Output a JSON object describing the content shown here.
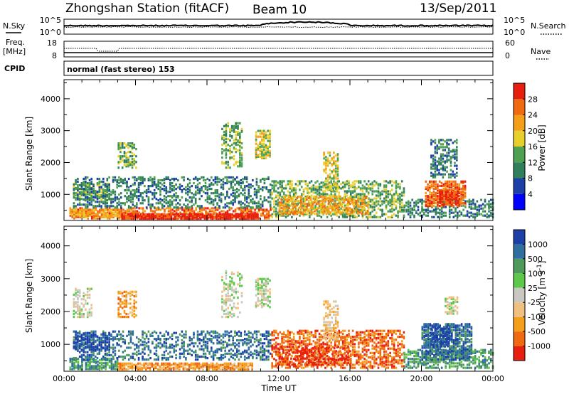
{
  "header": {
    "title_left": "Zhongshan Station (fitACF)",
    "beam": "Beam 10",
    "date": "13/Sep/2011"
  },
  "status_panels": {
    "nsky_label": "N.Sky",
    "nsearch_label": "N.Search",
    "freq_label_line1": "Freq.",
    "freq_label_line2": "[MHz]",
    "nave_label": "Nave",
    "cpid_label": "CPID",
    "mode_text": "normal (fast stereo) 153",
    "noise_ticks_left": [
      "10^5",
      "10^0"
    ],
    "noise_ticks_right": [
      "10^5",
      "10^0"
    ],
    "freq_ticks": [
      "18",
      "8"
    ],
    "nave_ticks": [
      "60",
      "0"
    ]
  },
  "chart_data": [
    {
      "type": "heatmap",
      "title": "",
      "xlabel": "Time UT",
      "ylabel": "Slant Range [km]",
      "x_ticks": [
        "00:00",
        "04:00",
        "08:00",
        "12:00",
        "16:00",
        "20:00",
        "00:00"
      ],
      "x_range_hours": [
        0,
        24
      ],
      "y_ticks": [
        1000,
        2000,
        3000,
        4000
      ],
      "ylim": [
        180,
        4600
      ],
      "colorbar": {
        "label": "Power [dB]",
        "ticks": [
          "28",
          "24",
          "20",
          "16",
          "12",
          "8",
          "4"
        ],
        "colors": [
          "#0000ff",
          "#1c3fa8",
          "#2f7f5b",
          "#4fa050",
          "#e8cf2a",
          "#f59e1a",
          "#f06a12",
          "#e81e0e"
        ]
      },
      "regions": [
        {
          "t0": 0.3,
          "t1": 11.6,
          "r0": 210,
          "r1": 560,
          "level": 6,
          "density": 0.55
        },
        {
          "t0": 0.3,
          "t1": 3.2,
          "r0": 250,
          "r1": 500,
          "level": 5,
          "density": 0.8
        },
        {
          "t0": 3.2,
          "t1": 10.8,
          "r0": 200,
          "r1": 340,
          "level": 7,
          "density": 0.85
        },
        {
          "t0": 0.5,
          "t1": 2.5,
          "r0": 800,
          "r1": 1300,
          "level": 3,
          "density": 0.6
        },
        {
          "t0": 0.5,
          "t1": 11.5,
          "r0": 550,
          "r1": 1500,
          "level": 2,
          "density": 0.35
        },
        {
          "t0": 3.0,
          "t1": 4.0,
          "r0": 1800,
          "r1": 2600,
          "level": 3,
          "density": 0.4
        },
        {
          "t0": 8.8,
          "t1": 10.0,
          "r0": 1800,
          "r1": 3200,
          "level": 3,
          "density": 0.35
        },
        {
          "t0": 10.7,
          "t1": 11.5,
          "r0": 2100,
          "r1": 3000,
          "level": 4,
          "density": 0.6
        },
        {
          "t0": 11.6,
          "t1": 19.0,
          "r0": 250,
          "r1": 1400,
          "level": 3,
          "density": 0.45
        },
        {
          "t0": 12.0,
          "t1": 17.0,
          "r0": 350,
          "r1": 900,
          "level": 5,
          "density": 0.5
        },
        {
          "t0": 14.5,
          "t1": 15.3,
          "r0": 1100,
          "r1": 2300,
          "level": 4,
          "density": 0.45
        },
        {
          "t0": 19.0,
          "t1": 24.0,
          "r0": 250,
          "r1": 800,
          "level": 2,
          "density": 0.4
        },
        {
          "t0": 20.2,
          "t1": 22.5,
          "r0": 600,
          "r1": 1400,
          "level": 6,
          "density": 0.7
        },
        {
          "t0": 21.0,
          "t1": 22.0,
          "r0": 650,
          "r1": 1100,
          "level": 7,
          "density": 0.75
        },
        {
          "t0": 20.5,
          "t1": 22.0,
          "r0": 1500,
          "r1": 2700,
          "level": 2,
          "density": 0.45
        }
      ]
    },
    {
      "type": "heatmap",
      "title": "",
      "xlabel": "Time UT",
      "ylabel": "Slant Range [km]",
      "x_ticks": [
        "00:00",
        "04:00",
        "08:00",
        "12:00",
        "16:00",
        "20:00",
        "00:00"
      ],
      "x_range_hours": [
        0,
        24
      ],
      "y_ticks": [
        1000,
        2000,
        3000,
        4000
      ],
      "ylim": [
        180,
        4600
      ],
      "colorbar": {
        "label": "Velocity [m s^-1]",
        "ticks": [
          "1000",
          "500",
          "100",
          "25",
          "-25",
          "-100",
          "-500",
          "-1000"
        ],
        "colors": [
          "#e81e0e",
          "#f06a12",
          "#f59e1a",
          "#f0c080",
          "#c8c8c0",
          "#5ec84a",
          "#4f9a5a",
          "#2e6fa0",
          "#1c3fa8"
        ]
      },
      "regions": [
        {
          "t0": 0.3,
          "t1": 3.0,
          "r0": 210,
          "r1": 560,
          "level": 6,
          "density": 0.7
        },
        {
          "t0": 3.0,
          "t1": 10.5,
          "r0": 200,
          "r1": 400,
          "level": 2,
          "density": 0.8
        },
        {
          "t0": 0.5,
          "t1": 11.5,
          "r0": 500,
          "r1": 1400,
          "level": 7,
          "density": 0.35
        },
        {
          "t0": 0.5,
          "t1": 2.5,
          "r0": 800,
          "r1": 1300,
          "level": 8,
          "density": 0.55
        },
        {
          "t0": 0.5,
          "t1": 1.5,
          "r0": 1800,
          "r1": 2700,
          "level": 4,
          "density": 0.35
        },
        {
          "t0": 3.0,
          "t1": 4.0,
          "r0": 1800,
          "r1": 2600,
          "level": 2,
          "density": 0.4
        },
        {
          "t0": 8.8,
          "t1": 10.0,
          "r0": 1800,
          "r1": 3200,
          "level": 4,
          "density": 0.35
        },
        {
          "t0": 10.7,
          "t1": 11.5,
          "r0": 2100,
          "r1": 3000,
          "level": 4,
          "density": 0.55
        },
        {
          "t0": 11.6,
          "t1": 19.0,
          "r0": 250,
          "r1": 1400,
          "level": 1,
          "density": 0.5
        },
        {
          "t0": 12.0,
          "t1": 16.0,
          "r0": 350,
          "r1": 900,
          "level": 0,
          "density": 0.35
        },
        {
          "t0": 14.5,
          "t1": 15.3,
          "r0": 1100,
          "r1": 2300,
          "level": 3,
          "density": 0.45
        },
        {
          "t0": 19.0,
          "t1": 24.0,
          "r0": 250,
          "r1": 800,
          "level": 6,
          "density": 0.5
        },
        {
          "t0": 20.0,
          "t1": 22.8,
          "r0": 500,
          "r1": 1600,
          "level": 7,
          "density": 0.7
        },
        {
          "t0": 20.5,
          "t1": 21.5,
          "r0": 900,
          "r1": 1500,
          "level": 8,
          "density": 0.6
        },
        {
          "t0": 21.3,
          "t1": 22.0,
          "r0": 1900,
          "r1": 2400,
          "level": 4,
          "density": 0.55
        }
      ]
    }
  ]
}
